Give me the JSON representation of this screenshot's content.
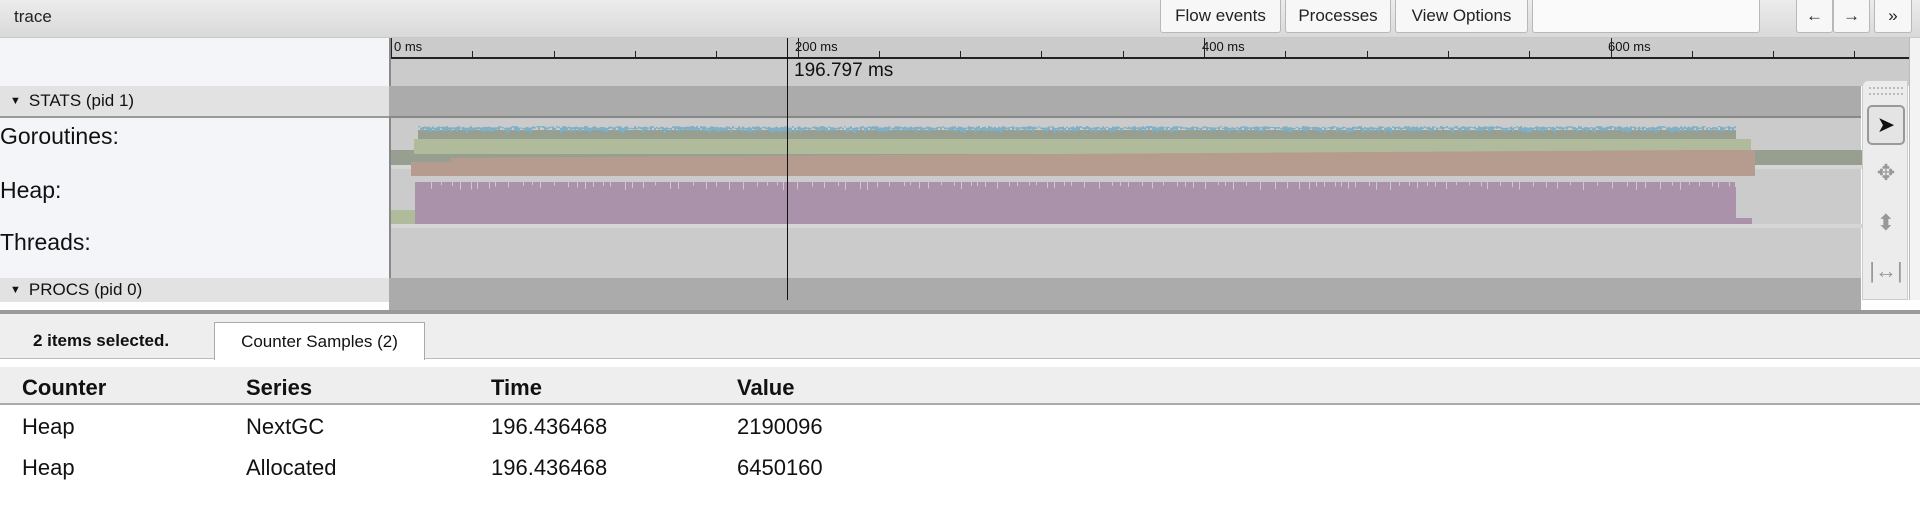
{
  "window": {
    "title": "trace"
  },
  "toolbar": {
    "flow_events": "Flow events",
    "processes": "Processes",
    "view_options": "View Options",
    "search_value": "",
    "back": "←",
    "forward": "→",
    "more": "»"
  },
  "ruler": {
    "ticks": [
      "0 ms",
      "200 ms",
      "400 ms",
      "600 ms"
    ],
    "cursor_time": "196.797 ms"
  },
  "processes": [
    {
      "name": "STATS (pid 1)",
      "expanded": true
    },
    {
      "name": "PROCS (pid 0)",
      "expanded": true
    }
  ],
  "tracks": [
    {
      "label": "Goroutines:",
      "colors": [
        "#97a090",
        "#7fb0c8"
      ]
    },
    {
      "label": "Heap:",
      "colors": [
        "#b59c8e",
        "#b0bb9c"
      ]
    },
    {
      "label": "Threads:",
      "colors": [
        "#aa92ab",
        "#b0bb9c"
      ]
    }
  ],
  "nav_tools": [
    "select-icon",
    "pan-icon",
    "zoom-icon",
    "timing-icon"
  ],
  "panel": {
    "selection_text": "2 items selected.",
    "tab": "Counter Samples (2)",
    "columns": [
      "Counter",
      "Series",
      "Time",
      "Value"
    ],
    "rows": [
      [
        "Heap",
        "NextGC",
        "196.436468",
        "2190096"
      ],
      [
        "Heap",
        "Allocated",
        "196.436468",
        "6450160"
      ]
    ]
  }
}
